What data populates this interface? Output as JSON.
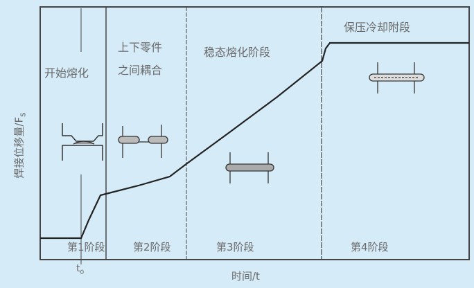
{
  "axes": {
    "ylabel": "焊接位移量/F",
    "ylabel_sub": "s",
    "xlabel": "时间/t",
    "t0_label": "t",
    "t0_sub": "0"
  },
  "phases": [
    {
      "title_lines": [
        "开始熔化"
      ],
      "stage_label": "第1阶段"
    },
    {
      "title_lines": [
        "上下零件",
        "之间耦合"
      ],
      "stage_label": "第2阶段"
    },
    {
      "title_lines": [
        "稳态熔化阶段"
      ],
      "stage_label": "第3阶段"
    },
    {
      "title_lines": [
        "保压冷却附段"
      ],
      "stage_label": "第4阶段"
    }
  ],
  "colors": {
    "background": "#d5ebf8",
    "line": "#222222",
    "text": "#6a6a6a"
  }
}
